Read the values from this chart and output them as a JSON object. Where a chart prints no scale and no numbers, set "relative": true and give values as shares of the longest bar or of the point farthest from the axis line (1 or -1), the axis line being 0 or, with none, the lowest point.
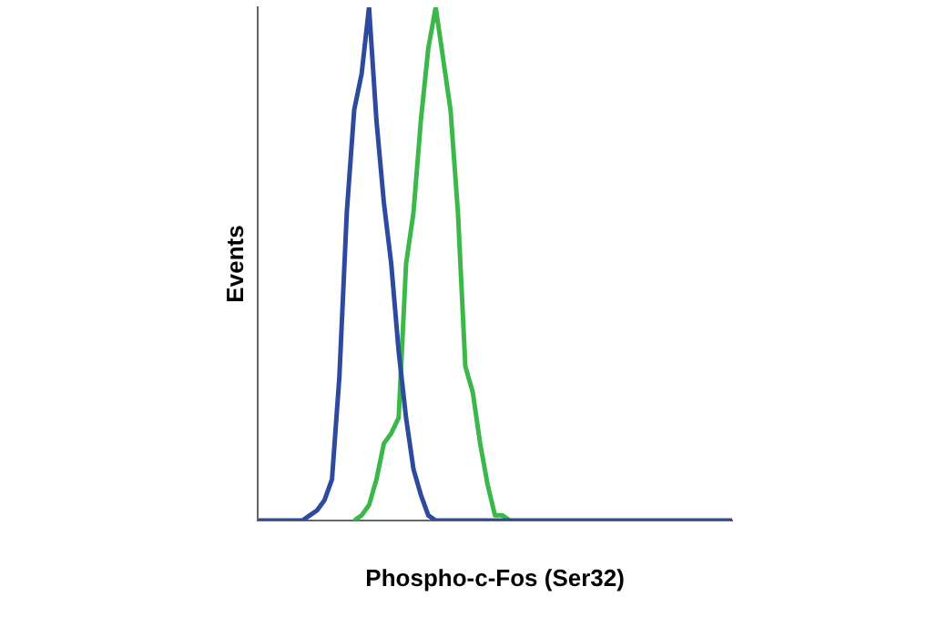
{
  "chart_data": {
    "type": "line",
    "relative": true,
    "xlabel": "Phospho-c-Fos (Ser32)",
    "ylabel": "Events",
    "grid": false,
    "legend": false,
    "marker": "none",
    "line_style": "solid",
    "categories": [
      null,
      null,
      null,
      null,
      null,
      null,
      null,
      null,
      null,
      null,
      null,
      null,
      null,
      null,
      null,
      null,
      null,
      null,
      null,
      null,
      null,
      null,
      null,
      null,
      null,
      null,
      null,
      null,
      null,
      null,
      null,
      null,
      null,
      null,
      null,
      null,
      null,
      null,
      null,
      null,
      null,
      null,
      null,
      null,
      null,
      null,
      null,
      null,
      null,
      null,
      null,
      null,
      null,
      null,
      null,
      null,
      null,
      null,
      null,
      null,
      null,
      null,
      null,
      null,
      null
    ],
    "series": [
      {
        "color": "#2e4a9e",
        "values": [
          0,
          0,
          0,
          0,
          0,
          0,
          0,
          0.01,
          0.02,
          0.04,
          0.08,
          0.28,
          0.6,
          0.8,
          0.87,
          1,
          0.78,
          0.62,
          0.5,
          0.33,
          0.2,
          0.1,
          0.05,
          0.01,
          0,
          0,
          0,
          0,
          0,
          0,
          0,
          0,
          0,
          0,
          0,
          0,
          0,
          0,
          0,
          0,
          0,
          0,
          0,
          0,
          0,
          0,
          0,
          0,
          0,
          0,
          0,
          0,
          0,
          0,
          0,
          0,
          0,
          0,
          0,
          0,
          0,
          0,
          0,
          0,
          0
        ]
      },
      {
        "color": "#3cb84a",
        "values": [
          null,
          null,
          null,
          null,
          null,
          null,
          null,
          null,
          null,
          null,
          null,
          null,
          null,
          0,
          0.01,
          0.03,
          0.08,
          0.15,
          0.17,
          0.2,
          0.5,
          0.6,
          0.78,
          0.92,
          1,
          0.9,
          0.8,
          0.6,
          0.3,
          0.25,
          0.15,
          0.07,
          0.01,
          0.01,
          0,
          null,
          null,
          null,
          null,
          null,
          null,
          null,
          null,
          null,
          null,
          null,
          null,
          null,
          null,
          null,
          null,
          null,
          null,
          null,
          null,
          null,
          null,
          null,
          null,
          null,
          null,
          null,
          null,
          null,
          null
        ]
      }
    ]
  }
}
